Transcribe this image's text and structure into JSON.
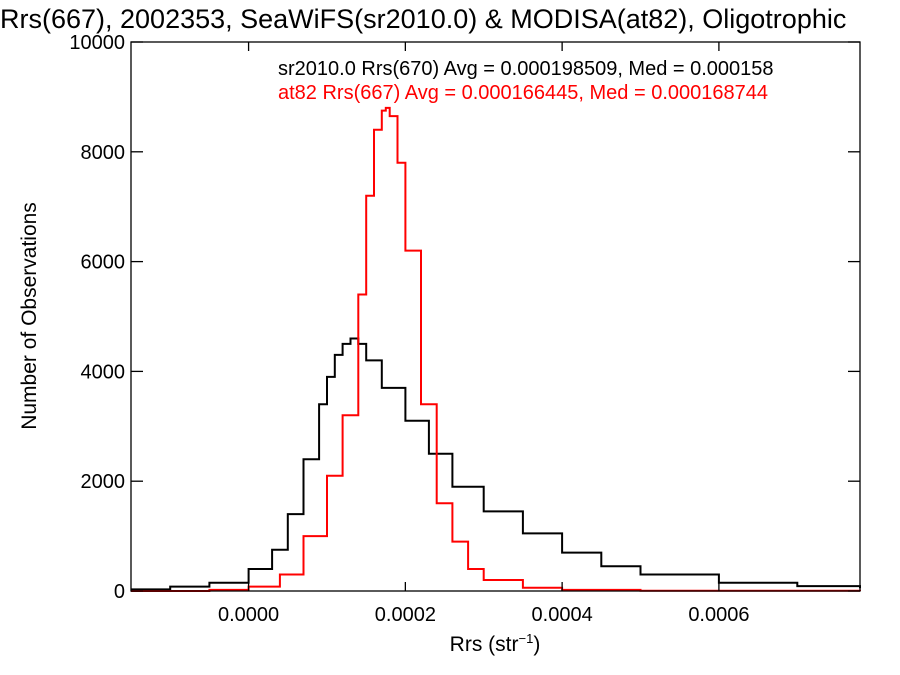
{
  "chart_data": {
    "type": "line",
    "title": "Rrs(667), 2002353, SeaWiFS(sr2010.0) & MODISA(at82), Oligotrophic",
    "xlabel_main": "Rrs (str",
    "xlabel_sup": "−1",
    "xlabel_close": ")",
    "ylabel": "Number of Observations",
    "xlim": [
      -0.00015,
      0.00078
    ],
    "ylim": [
      0,
      10000
    ],
    "x_ticks": [
      0.0,
      0.0002,
      0.0004,
      0.0006
    ],
    "x_tick_labels": [
      "0.0000",
      "0.0002",
      "0.0004",
      "0.0006"
    ],
    "y_ticks": [
      0,
      2000,
      4000,
      6000,
      8000,
      10000
    ],
    "y_tick_labels": [
      "0",
      "2000",
      "4000",
      "6000",
      "8000",
      "10000"
    ],
    "legend": [
      {
        "text": "sr2010.0 Rrs(670) Avg = 0.000198509, Med = 0.000158",
        "color": "#000000"
      },
      {
        "text": "at82 Rrs(667) Avg = 0.000166445, Med = 0.000168744",
        "color": "#ff0000"
      }
    ],
    "series": [
      {
        "color": "#000000",
        "x": [
          -0.00015,
          -0.0001,
          -5e-05,
          0.0,
          3e-05,
          5e-05,
          7e-05,
          9e-05,
          0.0001,
          0.00011,
          0.00012,
          0.00013,
          0.00014,
          0.00015,
          0.00017,
          0.0002,
          0.00023,
          0.00026,
          0.0003,
          0.00035,
          0.0004,
          0.00045,
          0.0005,
          0.0006,
          0.0007,
          0.00078
        ],
        "y": [
          30,
          80,
          150,
          400,
          750,
          1400,
          2400,
          3400,
          3900,
          4300,
          4500,
          4600,
          4500,
          4200,
          3700,
          3100,
          2500,
          1900,
          1450,
          1050,
          700,
          450,
          300,
          150,
          90,
          50
        ]
      },
      {
        "color": "#ff0000",
        "x": [
          -0.00015,
          -5e-05,
          0.0,
          4e-05,
          7e-05,
          0.0001,
          0.00012,
          0.00014,
          0.00015,
          0.00016,
          0.00017,
          0.000175,
          0.00018,
          0.00019,
          0.0002,
          0.00022,
          0.00024,
          0.00026,
          0.00028,
          0.0003,
          0.00035,
          0.0004,
          0.0005,
          0.00078
        ],
        "y": [
          0,
          20,
          80,
          300,
          1000,
          2100,
          3200,
          5400,
          7200,
          8400,
          8750,
          8800,
          8650,
          7800,
          6200,
          3400,
          1600,
          900,
          400,
          200,
          60,
          20,
          5,
          0
        ]
      }
    ]
  }
}
